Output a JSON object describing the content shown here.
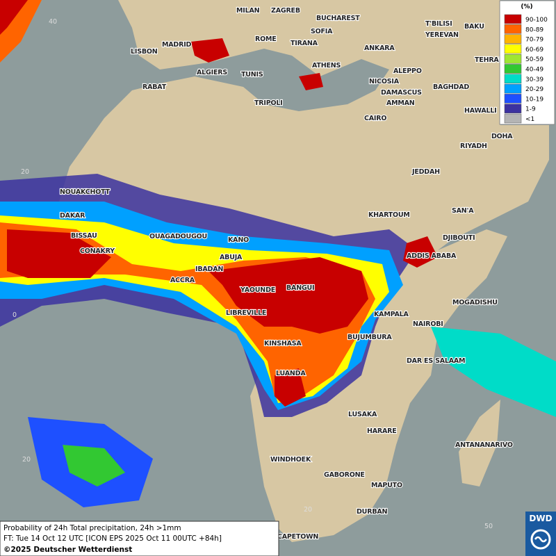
{
  "legend": {
    "unit": "(%)",
    "classes": [
      {
        "label": "90-100",
        "color": "#c80000"
      },
      {
        "label": "80-89",
        "color": "#ff6400"
      },
      {
        "label": "70-79",
        "color": "#ffb400"
      },
      {
        "label": "60-69",
        "color": "#ffff00"
      },
      {
        "label": "50-59",
        "color": "#a0e632"
      },
      {
        "label": "40-49",
        "color": "#32c832"
      },
      {
        "label": "30-39",
        "color": "#00dcc8"
      },
      {
        "label": "20-29",
        "color": "#00a0ff"
      },
      {
        "label": "10-19",
        "color": "#1e50ff"
      },
      {
        "label": "1-9",
        "color": "#3c32a0"
      },
      {
        "label": "<1",
        "color": "#b4b4b4"
      }
    ]
  },
  "cities": [
    "MILAN",
    "ZAGREB",
    "BUCHAREST",
    "T'BILISI",
    "BAKU",
    "MADRID",
    "ROME",
    "SOFIA",
    "YEREVAN",
    "LISBON",
    "TIRANA",
    "ANKARA",
    "TEHRAN",
    "ALGIERS",
    "TUNIS",
    "ATHENS",
    "ALEPPO",
    "RABAT",
    "NICOSIA",
    "BAGHDAD",
    "DAMASCUS",
    "TRIPOLI",
    "AMMAN",
    "HAWALLI",
    "CAIRO",
    "DOHA",
    "RIYADH",
    "JEDDAH",
    "NOUAKCHOTT",
    "SAN'A",
    "KHARTOUM",
    "DAKAR",
    "BISSAU",
    "DJIBOUTI",
    "OUAGADOUGOU",
    "KANO",
    "CONAKRY",
    "ABUJA",
    "ADDIS ABABA",
    "IBADAN",
    "ACCRA",
    "YAOUNDE",
    "BANGUI",
    "MOGADISHU",
    "LIBREVILLE",
    "KAMPALA",
    "NAIROBI",
    "BUJUMBURA",
    "KINSHASA",
    "DAR ES SALAAM",
    "LUANDA",
    "LUSAKA",
    "HARARE",
    "ANTANANARIVO",
    "WINDHOEK",
    "GABORONE",
    "MAPUTO",
    "DURBAN",
    "CAPETOWN"
  ],
  "grid_labels": [
    "40",
    "20",
    "0",
    "20",
    "20",
    "50"
  ],
  "footer": {
    "line1": "Probability of 24h Total precipitation, 24h >1mm",
    "line2": "FT: Tue 14 Oct 12 UTC [ICON EPS 2025 Oct 11 00UTC +84h]",
    "line3": "©2025 Deutscher Wetterdienst"
  },
  "logo": "DWD"
}
